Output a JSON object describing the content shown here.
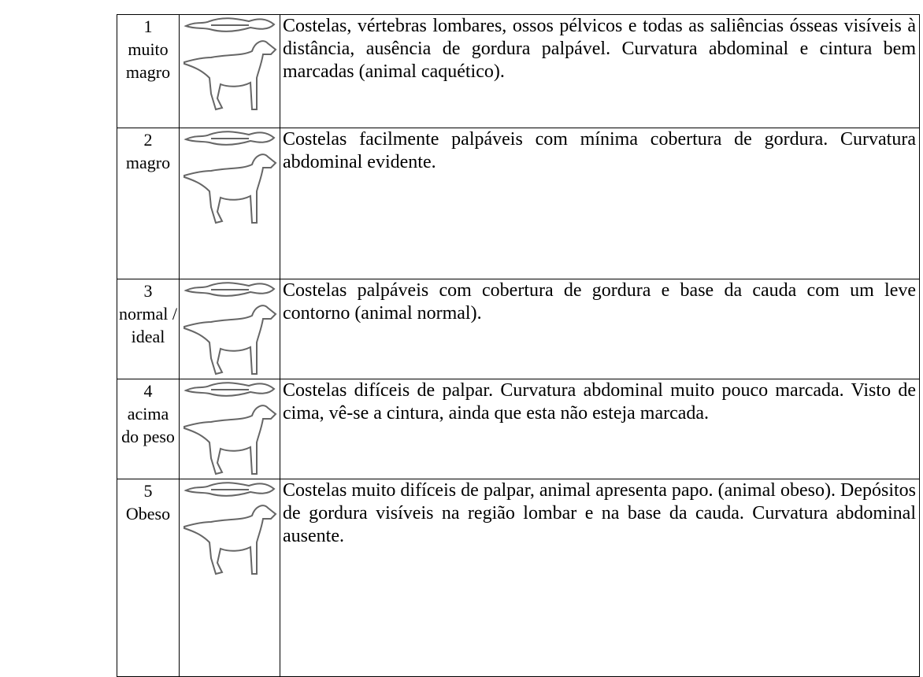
{
  "table": {
    "rows": [
      {
        "score": "1",
        "label": "muito magro",
        "description": "Costelas, vértebras lombares, ossos pélvicos e todas as saliências ósseas visíveis à distância, ausência de gordura palpável. Curvatura abdominal e cintura bem marcadas (animal caquético)."
      },
      {
        "score": "2",
        "label": "magro",
        "description": "Costelas facilmente palpáveis com mínima cobertura de gordura. Curvatura abdominal evidente."
      },
      {
        "score": "3",
        "label": "normal / ideal",
        "description": "Costelas palpáveis com cobertura de gordura e base da cauda com um leve contorno (animal normal)."
      },
      {
        "score": "4",
        "label": "acima do peso",
        "description": "Costelas difíceis de palpar. Curvatura abdominal muito pouco marcada. Visto de cima, vê-se a cintura, ainda que esta não esteja marcada."
      },
      {
        "score": "5",
        "label": "Obeso",
        "description": "Costelas muito difíceis de palpar, animal apresenta papo. (animal obeso). Depósitos de gordura visíveis na região lombar e na base da cauda. Curvatura abdominal ausente."
      }
    ]
  }
}
